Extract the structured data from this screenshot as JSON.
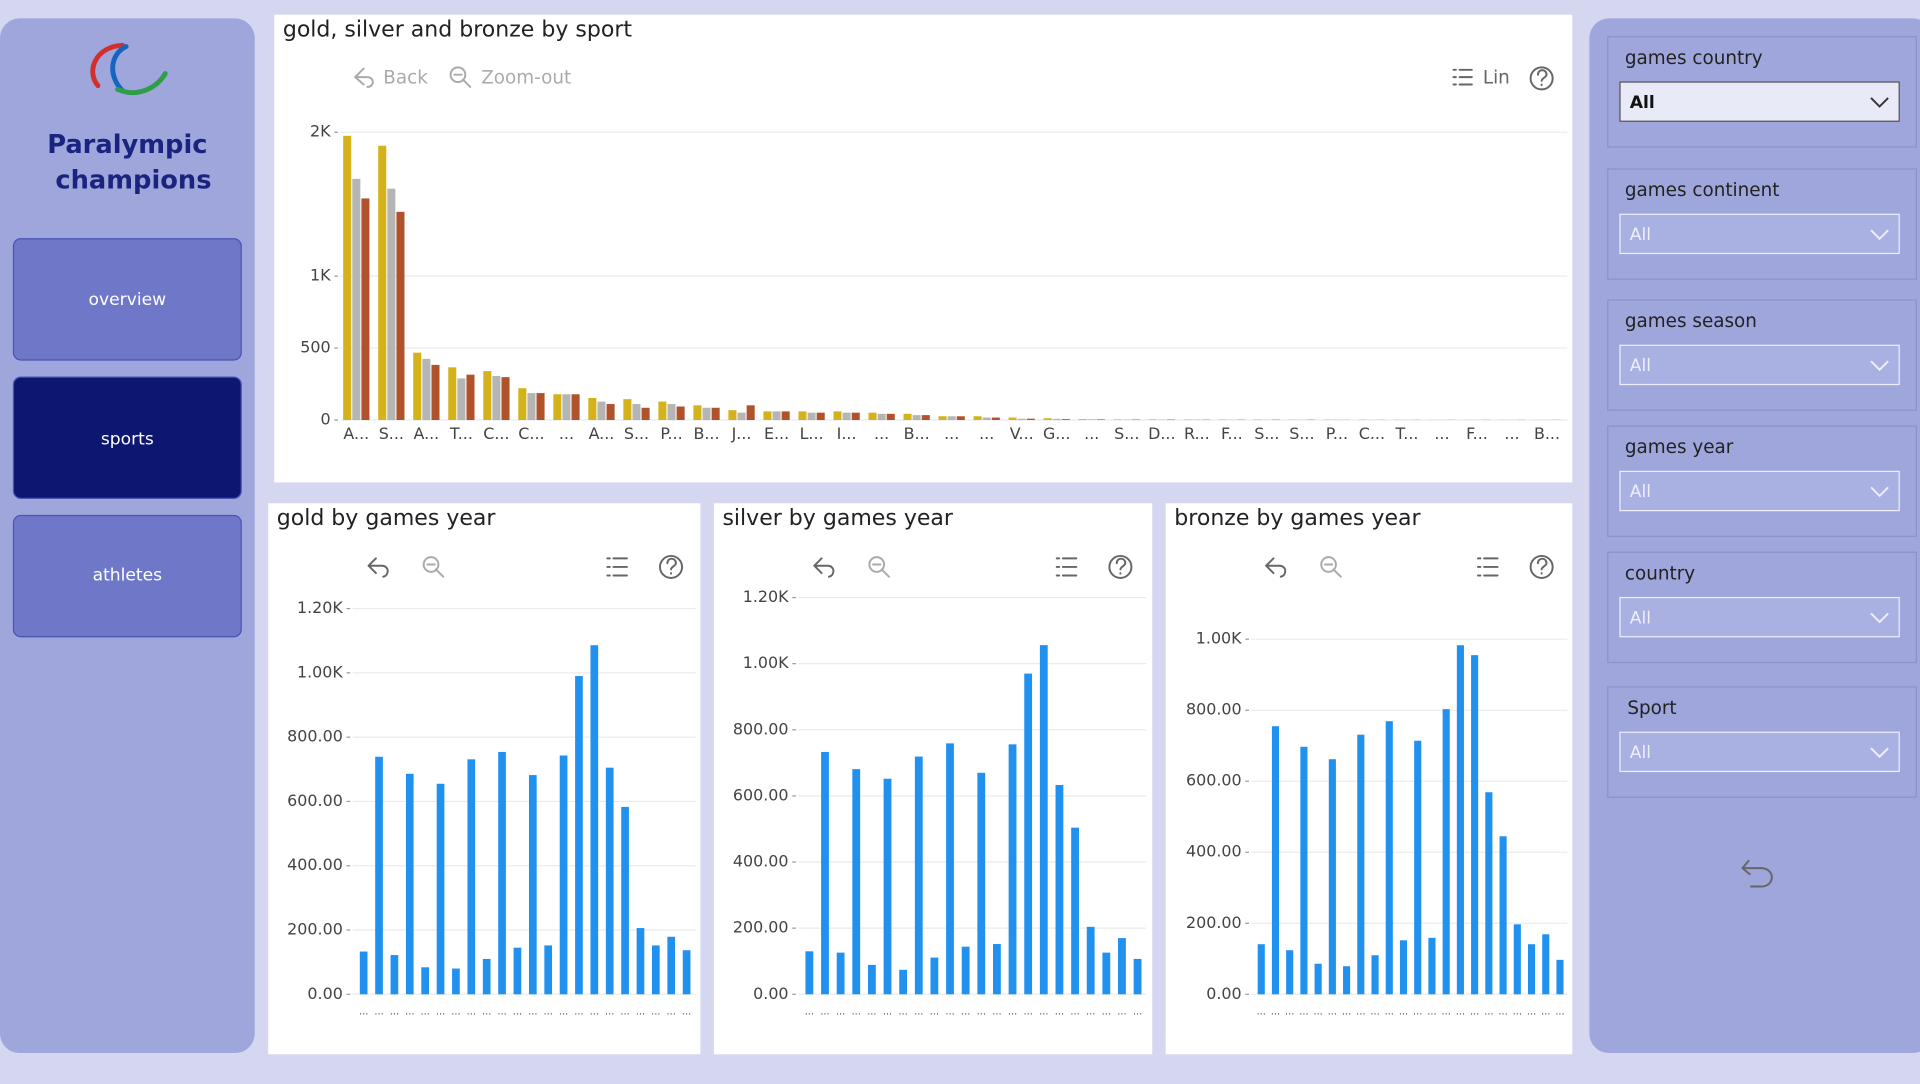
{
  "sidebar": {
    "title_line1": "Paralympic",
    "title_line2": "champions",
    "nav": [
      "overview",
      "sports",
      "athletes"
    ]
  },
  "toolbar": {
    "back": "Back",
    "zoom_out": "Zoom-out",
    "scale": "Lin"
  },
  "filters": [
    {
      "label": "games country",
      "value": "All"
    },
    {
      "label": "games continent",
      "value": "All"
    },
    {
      "label": "games season",
      "value": "All"
    },
    {
      "label": "games year",
      "value": "All"
    },
    {
      "label": "country",
      "value": "All"
    },
    {
      "label": "Sport",
      "value": "All"
    }
  ],
  "chart_data": [
    {
      "type": "bar",
      "title": "gold, silver and bronze by sport",
      "categories": [
        "A...",
        "S...",
        "A...",
        "T...",
        "C...",
        "C...",
        "...",
        "A...",
        "S...",
        "P...",
        "B...",
        "J...",
        "E...",
        "L...",
        "I...",
        "...",
        "B...",
        "...",
        "...",
        "V...",
        "G...",
        "...",
        "S...",
        "D...",
        "R...",
        "F...",
        "S...",
        "S...",
        "P...",
        "C...",
        "T...",
        "...",
        "F...",
        "...",
        "B..."
      ],
      "series": [
        {
          "color": "#d4b21a",
          "values": [
            1975,
            1906,
            468,
            366,
            340,
            221,
            179,
            153,
            145,
            128,
            102,
            68,
            60,
            60,
            60,
            51,
            43,
            26,
            26,
            17,
            12,
            6,
            4,
            4,
            3,
            3,
            3,
            2,
            2,
            2,
            2,
            1,
            1,
            1,
            1
          ]
        },
        {
          "color": "#b5b5b5",
          "values": [
            1676,
            1608,
            425,
            289,
            306,
            187,
            179,
            128,
            111,
            111,
            85,
            51,
            60,
            51,
            51,
            43,
            34,
            26,
            17,
            9,
            8,
            5,
            3,
            3,
            3,
            2,
            2,
            2,
            2,
            1,
            1,
            1,
            1,
            1,
            1
          ]
        },
        {
          "color": "#b0532d",
          "values": [
            1540,
            1447,
            383,
            315,
            298,
            187,
            179,
            111,
            85,
            94,
            85,
            102,
            60,
            51,
            51,
            43,
            34,
            26,
            17,
            9,
            6,
            4,
            3,
            3,
            2,
            2,
            2,
            2,
            1,
            1,
            1,
            1,
            1,
            1,
            1
          ]
        }
      ],
      "ylim": [
        0,
        2000
      ],
      "yticks": [
        0,
        500,
        {
          "value": 1000,
          "label": "1K"
        },
        {
          "value": 2000,
          "label": "2K"
        }
      ],
      "grid": true
    },
    {
      "type": "bar",
      "title": "gold by games year",
      "categories": [
        "...",
        "...",
        "...",
        "...",
        "...",
        "...",
        "...",
        "...",
        "...",
        "...",
        "...",
        "...",
        "...",
        "...",
        "...",
        "...",
        "...",
        "...",
        "...",
        "...",
        "...",
        "..."
      ],
      "values": [
        133,
        739,
        122,
        686,
        84,
        655,
        80,
        731,
        110,
        754,
        145,
        682,
        152,
        743,
        990,
        1086,
        705,
        583,
        206,
        152,
        179,
        137
      ],
      "color": "#2191f0",
      "ylim": [
        0,
        1200
      ],
      "yticks": [
        {
          "value": 0,
          "label": "0.00"
        },
        {
          "value": 200,
          "label": "200.00"
        },
        {
          "value": 400,
          "label": "400.00"
        },
        {
          "value": 600,
          "label": "600.00"
        },
        {
          "value": 800,
          "label": "800.00"
        },
        {
          "value": 1000,
          "label": "1.00K"
        },
        {
          "value": 1200,
          "label": "1.20K"
        }
      ],
      "grid": true
    },
    {
      "type": "bar",
      "title": "silver by games year",
      "categories": [
        "...",
        "...",
        "...",
        "...",
        "...",
        "...",
        "...",
        "...",
        "...",
        "...",
        "...",
        "...",
        "...",
        "...",
        "...",
        "...",
        "...",
        "...",
        "...",
        "...",
        "...",
        "..."
      ],
      "values": [
        130,
        733,
        126,
        681,
        89,
        652,
        74,
        719,
        111,
        759,
        144,
        670,
        152,
        756,
        970,
        1056,
        633,
        504,
        204,
        126,
        170,
        107
      ],
      "color": "#2191f0",
      "ylim": [
        0,
        1200
      ],
      "yticks": [
        {
          "value": 0,
          "label": "0.00"
        },
        {
          "value": 200,
          "label": "200.00"
        },
        {
          "value": 400,
          "label": "400.00"
        },
        {
          "value": 600,
          "label": "600.00"
        },
        {
          "value": 800,
          "label": "800.00"
        },
        {
          "value": 1000,
          "label": "1.00K"
        },
        {
          "value": 1200,
          "label": "1.20K"
        }
      ],
      "grid": true
    },
    {
      "type": "bar",
      "title": "bronze by games year",
      "categories": [
        "...",
        "...",
        "...",
        "...",
        "...",
        "...",
        "...",
        "...",
        "...",
        "...",
        "...",
        "...",
        "...",
        "...",
        "...",
        "...",
        "...",
        "...",
        "...",
        "...",
        "...",
        "..."
      ],
      "values": [
        141,
        755,
        124,
        697,
        86,
        662,
        79,
        731,
        110,
        769,
        152,
        714,
        159,
        803,
        983,
        955,
        569,
        445,
        197,
        141,
        169,
        97
      ],
      "color": "#2191f0",
      "ylim": [
        0,
        1000
      ],
      "yticks": [
        {
          "value": 0,
          "label": "0.00"
        },
        {
          "value": 200,
          "label": "200.00"
        },
        {
          "value": 400,
          "label": "400.00"
        },
        {
          "value": 600,
          "label": "600.00"
        },
        {
          "value": 800,
          "label": "800.00"
        },
        {
          "value": 1000,
          "label": "1.00K"
        }
      ],
      "grid": true
    }
  ]
}
